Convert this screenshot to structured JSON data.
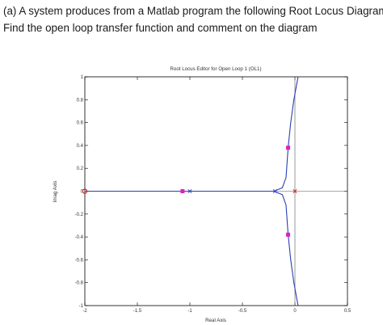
{
  "question": {
    "line1": "(a) A system produces from a Matlab program the following Root Locus Diagram.",
    "line2": "Find the open loop transfer function and comment on the diagram"
  },
  "chart_data": {
    "type": "line",
    "title": "Root Locus Editor for Open Loop 1 (OL1)",
    "xlabel": "Real Axis",
    "ylabel": "Imag Axis",
    "xlim": [
      -2,
      0.5
    ],
    "ylim": [
      -1,
      1
    ],
    "xticks": [
      "-2",
      "-1.5",
      "-1",
      "-0.5",
      "0",
      "0.5"
    ],
    "yticks": [
      "-1",
      "-0.8",
      "-0.6",
      "-0.4",
      "-0.2",
      "0",
      "0.2",
      "0.4",
      "0.6",
      "0.8",
      "1"
    ],
    "grid": false,
    "colors": {
      "locus": "#2b3fb0",
      "pole": "#2b3fb0",
      "zero_or_origin_pole": "#d02020",
      "closed_loop_pole": "#e020c0",
      "zero_marker": "#c01818"
    },
    "branches": [
      {
        "name": "",
        "points": [
          [
            -2.0,
            0.0
          ],
          [
            -1.5,
            0.0
          ],
          [
            -1.1,
            0.0
          ],
          [
            -1.0,
            0.0
          ],
          [
            -0.9,
            0.0
          ],
          [
            -0.5,
            0.0
          ],
          [
            -0.2,
            0.0
          ]
        ]
      },
      {
        "name": "",
        "points": [
          [
            -0.2,
            0.0
          ],
          [
            -0.12,
            0.03
          ],
          [
            -0.085,
            0.12
          ],
          [
            -0.075,
            0.25
          ],
          [
            -0.065,
            0.38
          ],
          [
            -0.04,
            0.6
          ],
          [
            -0.01,
            0.8
          ],
          [
            0.03,
            1.0
          ]
        ]
      },
      {
        "name": "",
        "points": [
          [
            -0.2,
            0.0
          ],
          [
            -0.12,
            -0.03
          ],
          [
            -0.085,
            -0.12
          ],
          [
            -0.075,
            -0.25
          ],
          [
            -0.065,
            -0.38
          ],
          [
            -0.04,
            -0.6
          ],
          [
            -0.01,
            -0.8
          ],
          [
            0.03,
            -1.0
          ]
        ]
      }
    ],
    "open_loop_poles": [
      [
        -1.0,
        0.0
      ],
      [
        -0.19,
        0.0
      ],
      [
        0.0,
        0.0
      ]
    ],
    "open_loop_zeros": [
      [
        -2.0,
        0.0
      ]
    ],
    "closed_loop_poles": [
      [
        -1.07,
        0.0
      ],
      [
        -0.065,
        0.38
      ],
      [
        -0.065,
        -0.38
      ]
    ]
  }
}
